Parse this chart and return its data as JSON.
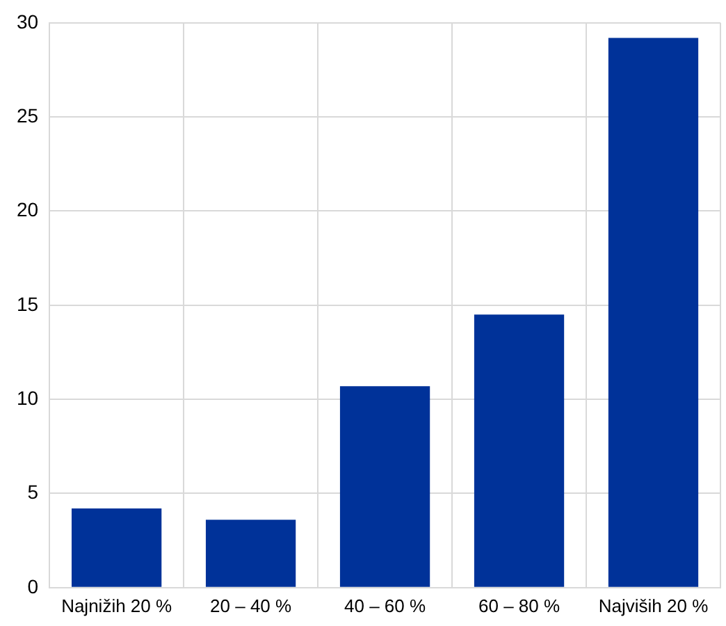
{
  "chart_data": {
    "type": "bar",
    "categories": [
      "Najnižih 20 %",
      "20 – 40 %",
      "40 – 60 %",
      "60 – 80 %",
      "Najviših 20 %"
    ],
    "values": [
      4.2,
      3.6,
      10.7,
      14.5,
      29.2
    ],
    "color": "#003299",
    "ylim": [
      0,
      30
    ],
    "yticks": [
      0,
      5,
      10,
      15,
      20,
      25,
      30
    ],
    "grid": true
  }
}
